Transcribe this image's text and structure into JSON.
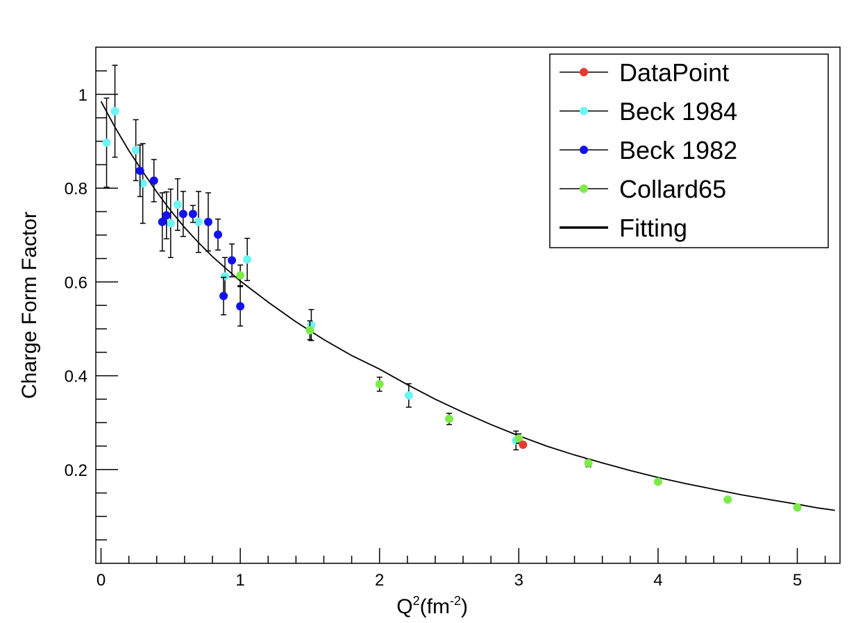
{
  "chart_data": {
    "type": "scatter",
    "xlabel": "Q",
    "xlabel_sup": "2",
    "xlabel_unit": "(fm",
    "xlabel_unit_sup": "-2",
    "xlabel_close": ")",
    "ylabel": "Charge Form Factor",
    "xlim": [
      0,
      5.3
    ],
    "ylim": [
      0,
      1.1
    ],
    "x_ticks": [
      0,
      1,
      2,
      3,
      4,
      5
    ],
    "x_tick_labels": [
      "0",
      "1",
      "2",
      "3",
      "4",
      "5"
    ],
    "y_ticks": [
      0.2,
      0.4,
      0.6,
      0.8,
      1.0
    ],
    "y_tick_labels": [
      "0.2",
      "0.4",
      "0.6",
      "0.8",
      "1"
    ],
    "grid": false,
    "legend_position": "top-right",
    "series": [
      {
        "name": "DataPoint",
        "color": "#e8392b",
        "points": [
          {
            "x": 3.03,
            "y": 0.253,
            "err": 0.0
          }
        ]
      },
      {
        "name": "Beck 1984",
        "color": "#6df5f5",
        "points": [
          {
            "x": 0.04,
            "y": 0.897,
            "err": 0.095
          },
          {
            "x": 0.1,
            "y": 0.964,
            "err": 0.098
          },
          {
            "x": 0.25,
            "y": 0.881,
            "err": 0.065
          },
          {
            "x": 0.3,
            "y": 0.81,
            "err": 0.085
          },
          {
            "x": 0.5,
            "y": 0.725,
            "err": 0.073
          },
          {
            "x": 0.55,
            "y": 0.765,
            "err": 0.055
          },
          {
            "x": 0.7,
            "y": 0.728,
            "err": 0.065
          },
          {
            "x": 0.89,
            "y": 0.612,
            "err": 0.04
          },
          {
            "x": 1.05,
            "y": 0.648,
            "err": 0.045
          },
          {
            "x": 1.51,
            "y": 0.508,
            "err": 0.033
          },
          {
            "x": 2.21,
            "y": 0.358,
            "err": 0.025
          },
          {
            "x": 2.98,
            "y": 0.262,
            "err": 0.02
          }
        ]
      },
      {
        "name": "Beck 1982",
        "color": "#1212ee",
        "points": [
          {
            "x": 0.28,
            "y": 0.837,
            "err": 0.055
          },
          {
            "x": 0.38,
            "y": 0.816,
            "err": 0.045
          },
          {
            "x": 0.44,
            "y": 0.728,
            "err": 0.062
          },
          {
            "x": 0.47,
            "y": 0.742,
            "err": 0.05
          },
          {
            "x": 0.59,
            "y": 0.745,
            "err": 0.048
          },
          {
            "x": 0.66,
            "y": 0.745,
            "err": 0.018
          },
          {
            "x": 0.77,
            "y": 0.728,
            "err": 0.062
          },
          {
            "x": 0.84,
            "y": 0.701,
            "err": 0.033
          },
          {
            "x": 0.88,
            "y": 0.57,
            "err": 0.04
          },
          {
            "x": 0.94,
            "y": 0.646,
            "err": 0.035
          },
          {
            "x": 1.0,
            "y": 0.548,
            "err": 0.042
          }
        ]
      },
      {
        "name": "Collard65",
        "color": "#7ceb4a",
        "points": [
          {
            "x": 1.0,
            "y": 0.614,
            "err": 0.022
          },
          {
            "x": 1.5,
            "y": 0.497,
            "err": 0.02
          },
          {
            "x": 2.0,
            "y": 0.382,
            "err": 0.015
          },
          {
            "x": 2.5,
            "y": 0.308,
            "err": 0.012
          },
          {
            "x": 3.0,
            "y": 0.266,
            "err": 0.01
          },
          {
            "x": 3.5,
            "y": 0.214,
            "err": 0.008
          },
          {
            "x": 4.0,
            "y": 0.174,
            "err": 0.005
          },
          {
            "x": 4.5,
            "y": 0.136,
            "err": 0.004
          },
          {
            "x": 5.0,
            "y": 0.119,
            "err": 0.003
          }
        ]
      }
    ],
    "fit": {
      "name": "Fitting",
      "color": "#000000",
      "x": [
        0.0,
        0.1,
        0.2,
        0.3,
        0.4,
        0.5,
        0.6,
        0.7,
        0.8,
        0.9,
        1.0,
        1.2,
        1.4,
        1.6,
        1.8,
        2.0,
        2.2,
        2.4,
        2.6,
        2.8,
        3.0,
        3.2,
        3.4,
        3.6,
        3.8,
        4.0,
        4.2,
        4.4,
        4.6,
        4.8,
        5.0,
        5.15,
        5.27
      ],
      "y": [
        0.985,
        0.93,
        0.88,
        0.835,
        0.792,
        0.752,
        0.716,
        0.684,
        0.654,
        0.628,
        0.602,
        0.557,
        0.515,
        0.477,
        0.443,
        0.414,
        0.381,
        0.35,
        0.322,
        0.296,
        0.272,
        0.25,
        0.231,
        0.214,
        0.198,
        0.183,
        0.17,
        0.158,
        0.146,
        0.136,
        0.126,
        0.118,
        0.113
      ]
    }
  }
}
